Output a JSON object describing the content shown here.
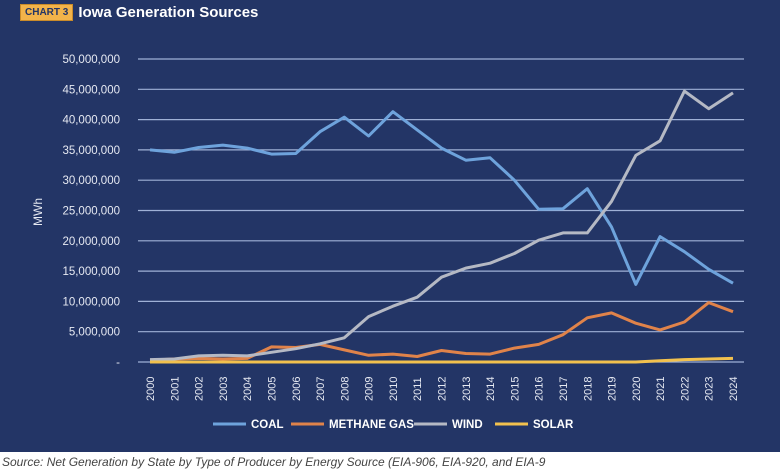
{
  "header": {
    "badge": "CHART 3",
    "title": "Iowa Generation Sources"
  },
  "source_text": "Source: Net Generation by State by Type of Producer by Energy Source (EIA-906, EIA-920, and EIA-9",
  "chart_data": {
    "type": "line",
    "title": "Iowa Generation Sources",
    "xlabel": "",
    "ylabel": "MWh",
    "ylim": [
      0,
      50000000
    ],
    "yticks": [
      0,
      5000000,
      10000000,
      15000000,
      20000000,
      25000000,
      30000000,
      35000000,
      40000000,
      45000000,
      50000000
    ],
    "ytick_labels": [
      "-",
      "5,000,000",
      "10,000,000",
      "15,000,000",
      "20,000,000",
      "25,000,000",
      "30,000,000",
      "35,000,000",
      "40,000,000",
      "45,000,000",
      "50,000,000"
    ],
    "grid": true,
    "legend_position": "bottom",
    "categories": [
      "2000",
      "2001",
      "2002",
      "2003",
      "2004",
      "2005",
      "2006",
      "2007",
      "2008",
      "2009",
      "2010",
      "2011",
      "2012",
      "2013",
      "2014",
      "2015",
      "2016",
      "2017",
      "2018",
      "2019",
      "2020",
      "2021",
      "2022",
      "2023",
      "2024"
    ],
    "series": [
      {
        "name": "COAL",
        "color": "#6ea3dc",
        "values": [
          35000000,
          34600000,
          35400000,
          35800000,
          35300000,
          34300000,
          34400000,
          38000000,
          40400000,
          37300000,
          41300000,
          38300000,
          35300000,
          33300000,
          33700000,
          30000000,
          25200000,
          25300000,
          28600000,
          22300000,
          12800000,
          20700000,
          18200000,
          15300000,
          13000000
        ]
      },
      {
        "name": "METHANE GAS",
        "color": "#e0834a",
        "values": [
          300000,
          500000,
          600000,
          500000,
          600000,
          2500000,
          2400000,
          2900000,
          2000000,
          1100000,
          1300000,
          900000,
          1900000,
          1400000,
          1300000,
          2300000,
          2900000,
          4500000,
          7300000,
          8100000,
          6400000,
          5300000,
          6600000,
          9800000,
          8300000
        ]
      },
      {
        "name": "WIND",
        "color": "#b5b9c4",
        "values": [
          400000,
          500000,
          1000000,
          1100000,
          1000000,
          1600000,
          2200000,
          3000000,
          4000000,
          7500000,
          9200000,
          10700000,
          14000000,
          15500000,
          16300000,
          17900000,
          20100000,
          21300000,
          21300000,
          26500000,
          34100000,
          36500000,
          44700000,
          41800000,
          44400000
        ]
      },
      {
        "name": "SOLAR",
        "color": "#f2c14e",
        "values": [
          0,
          0,
          0,
          0,
          0,
          0,
          0,
          0,
          0,
          0,
          0,
          0,
          0,
          0,
          0,
          0,
          0,
          0,
          0,
          0,
          0,
          200000,
          400000,
          500000,
          600000
        ]
      }
    ]
  }
}
